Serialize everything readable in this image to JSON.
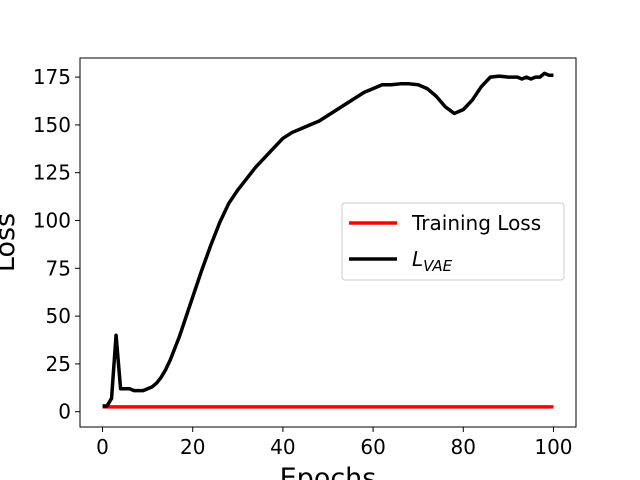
{
  "chart_data": {
    "type": "line",
    "xlabel": "Epochs",
    "ylabel": "Loss",
    "xlim": [
      -5,
      105
    ],
    "ylim": [
      -8,
      185
    ],
    "xticks": [
      0,
      20,
      40,
      60,
      80,
      100
    ],
    "yticks": [
      0,
      25,
      50,
      75,
      100,
      125,
      150,
      175
    ],
    "grid": false,
    "legend_position": "center-right",
    "series": [
      {
        "name": "Training Loss",
        "color": "#ff0000",
        "x": [
          0,
          100
        ],
        "y": [
          2.5,
          2.5
        ]
      },
      {
        "name": "L",
        "name_subscript": "VAE",
        "color": "#000000",
        "x": [
          0,
          1,
          2,
          3,
          4,
          5,
          6,
          7,
          8,
          9,
          10,
          11,
          12,
          13,
          14,
          15,
          16,
          17,
          18,
          19,
          20,
          22,
          24,
          26,
          28,
          30,
          32,
          34,
          36,
          38,
          40,
          42,
          44,
          46,
          48,
          50,
          52,
          54,
          56,
          58,
          60,
          62,
          64,
          66,
          68,
          70,
          72,
          74,
          76,
          78,
          80,
          82,
          84,
          86,
          88,
          90,
          91,
          92,
          93,
          94,
          95,
          96,
          97,
          98,
          99,
          100
        ],
        "y": [
          3,
          3,
          7,
          40,
          12,
          12,
          12,
          11,
          11,
          11,
          12,
          13,
          15,
          18,
          22,
          27,
          33,
          39,
          46,
          53,
          60,
          74,
          87,
          99,
          109,
          116,
          122,
          128,
          133,
          138,
          143,
          146,
          148,
          150,
          152,
          155,
          158,
          161,
          164,
          167,
          169,
          171,
          171,
          171.5,
          171.5,
          171,
          169,
          165,
          159.5,
          156,
          158,
          163,
          170,
          175,
          175.5,
          175,
          175,
          175,
          174,
          175,
          174,
          175,
          175,
          177,
          176,
          176
        ]
      }
    ]
  }
}
